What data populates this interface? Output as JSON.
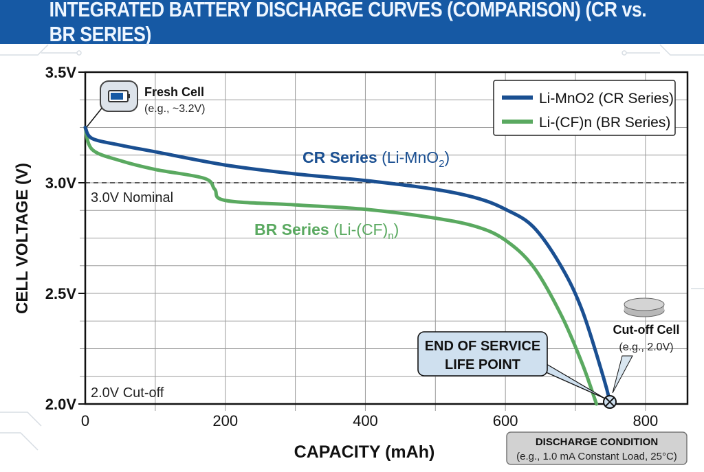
{
  "chart_data": {
    "type": "line",
    "title": "INTEGRATED BATTERY DISCHARGE CURVES (COMPARISON) (CR vs. BR SERIES)",
    "xlabel": "CAPACITY (mAh)",
    "ylabel": "CELL VOLTAGE (V)",
    "xlim": [
      0,
      860
    ],
    "ylim": [
      2.0,
      3.5
    ],
    "xticks": [
      0,
      200,
      400,
      600,
      800
    ],
    "xtick_labels": [
      "0",
      "200",
      "400",
      "600",
      "800"
    ],
    "yticks": [
      2.0,
      2.5,
      3.0,
      3.5
    ],
    "ytick_labels": [
      "2.0V",
      "2.5V",
      "3.0V",
      "3.5V"
    ],
    "grid": true,
    "legend_position": "top-right",
    "series": [
      {
        "name": "Li-MnO2 (CR Series)",
        "color": "#1a4f91",
        "x": [
          0,
          10,
          50,
          100,
          200,
          300,
          400,
          500,
          560,
          600,
          640,
          680,
          710,
          740,
          750
        ],
        "y": [
          3.25,
          3.2,
          3.17,
          3.14,
          3.08,
          3.04,
          3.01,
          2.97,
          2.93,
          2.88,
          2.8,
          2.62,
          2.42,
          2.12,
          2.0
        ]
      },
      {
        "name": "Li-(CF)n (BR Series)",
        "color": "#5aa960",
        "x": [
          0,
          10,
          50,
          100,
          170,
          185,
          200,
          300,
          400,
          500,
          560,
          600,
          640,
          680,
          710,
          730
        ],
        "y": [
          3.25,
          3.15,
          3.1,
          3.06,
          3.02,
          2.97,
          2.92,
          2.9,
          2.88,
          2.84,
          2.8,
          2.74,
          2.62,
          2.4,
          2.18,
          2.0
        ]
      }
    ],
    "annotations": {
      "nominal": "3.0V Nominal",
      "cutoff": "2.0V Cut-off",
      "nominal_value": 3.0,
      "fresh_title": "Fresh Cell",
      "fresh_sub": "(e.g., ~3.2V)",
      "cr_label": "CR Series",
      "cr_chem": "(Li-MnO",
      "cr_sub": "2",
      "cr_close": ")",
      "br_label": "BR Series",
      "br_chem": "(Li-(CF)",
      "br_sub": "n",
      "br_close": ")",
      "end_line1": "END OF SERVICE",
      "end_line2": "LIFE POINT",
      "cutcell_title": "Cut-off Cell",
      "cutcell_sub": "(e.g., 2.0V)",
      "cond_title": "DISCHARGE CONDITION",
      "cond_sub": "(e.g., 1.0 mA Constant Load, 25°C)"
    }
  }
}
